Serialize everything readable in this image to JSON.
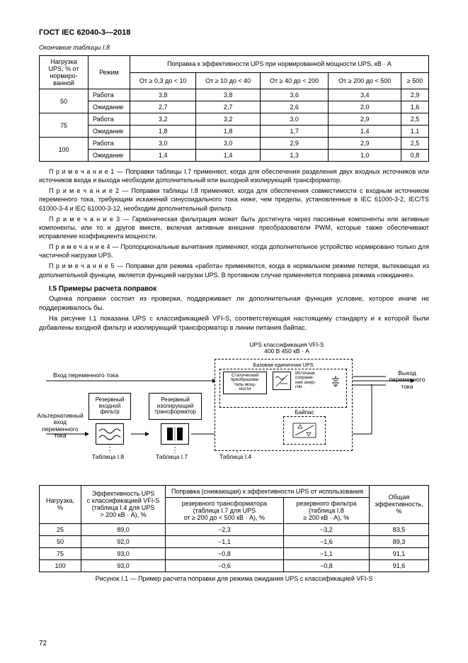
{
  "header": "ГОСТ IEC 62040-3—2018",
  "table_continuation": "Окончание таблицы I.8",
  "table1": {
    "col_headers_top": [
      "Нагрузка UPS, % от нормиро-\nванной",
      "Режим",
      "Поправка к эффективности UPS при нормированной мощности UPS, кВ · А"
    ],
    "range_headers": [
      "От ≥ 0,3 до < 10",
      "От ≥ 10 до < 40",
      "От ≥ 40 до < 200",
      "От ≥ 200 до < 500",
      "≥ 500"
    ],
    "rows": [
      {
        "load": "50",
        "mode": "Работа",
        "v": [
          "3,8",
          "3,8",
          "3,6",
          "3,4",
          "2,9"
        ]
      },
      {
        "load": "",
        "mode": "Ожидание",
        "v": [
          "2,7",
          "2,7",
          "2,6",
          "2,0",
          "1,6"
        ]
      },
      {
        "load": "75",
        "mode": "Работа",
        "v": [
          "3,2",
          "3,2",
          "3,0",
          "2,9",
          "2,5"
        ]
      },
      {
        "load": "",
        "mode": "Ожидание",
        "v": [
          "1,8",
          "1,8",
          "1,7",
          "1,4",
          "1,1"
        ]
      },
      {
        "load": "100",
        "mode": "Работа",
        "v": [
          "3,0",
          "3,0",
          "2,9",
          "2,9",
          "2,5"
        ]
      },
      {
        "load": "",
        "mode": "Ожидание",
        "v": [
          "1,4",
          "1,4",
          "1,3",
          "1,0",
          "0,8"
        ]
      }
    ]
  },
  "notes": {
    "n1": "П р и м е ч а н и е  1 — Поправки таблицы I.7 применяют, когда для обеспечения разделения двух входных источников или источников входа и выхода необходим дополнительный или выходной изолирующий трансформатор.",
    "n2": "П р и м е ч а н и е  2 — Поправки таблицы I.8 применяют, когда для обеспечения совместимости с входным источником переменного тока, требующим искажений синусоидального тока ниже, чем пределы, установленные в IEC 61000-3-2, IEC/TS 61000-3-4 и IEC 61000-3-12, необходим дополнительный фильтр.",
    "n3": "П р и м е ч а н и е  3 — Гармоническая фильтрация может быть достигнута через пассивные компоненты или активные компоненты, или то и другое вместе, включая активные внешние преобразователи PWM, которые также обеспечивают исправление коэффициента мощности.",
    "n4": "П р и м е ч а н и е  4 — Пропорциональные вычитания применяют, когда дополнительное устройство нормировано только для частичной нагрузки UPS.",
    "n5": "П р и м е ч а н и е  5 — Поправки для режима «работа» применяются, когда в нормальном режиме потеря, вытекающая из дополнительной функции, является функцией нагрузки UPS. В противном случае применяется поправка режима «ожидание»."
  },
  "section_i5_title": "I.5 Примеры расчета поправок",
  "section_i5_p1": "Оценка поправки состоит из проверки, поддерживает ли дополнительная функция условие, которое иначе не поддерживалось бы.",
  "section_i5_p2": "На рисунке I.1 показана UPS с классификацией VFI-S, соответствующая настоящему стандарту и к которой были добавлены входной фильтр и изолирующий трансформатор в линии питания байпас.",
  "diagram": {
    "ups_class": "UPS классификация VFI-S\n400 В 450 кВ · А",
    "basic_unit": "Базовая единичная UPS",
    "input_ac": "Вход переменного тока",
    "alt_input": "Альтернативный\nвход\nпеременного\nтока",
    "output_ac": "Выход\nпеременного\nтока",
    "reserve_filter": "Резервный\nвходной\nфильтр",
    "reserve_trans": "Резервный\nизолирующий\nтрансформатор",
    "static_conv": "Статический\nпреобразова-\nтель мощ-\nности",
    "energy_store": "Источник\nсохране-\nния энер-\nгии",
    "bypass": "Байпас",
    "tbl_i8": "Таблица  I.8",
    "tbl_i7": "Таблица  I.7",
    "tbl_i4": "Таблица  I.4"
  },
  "table2": {
    "h_load": "Нагрузка,\n%",
    "h_eff": "Эффективность UPS\nс классификацией VFI-S\n(таблица I.4 для UPS\n> 200 кВ · А), %",
    "h_corr_top": "Поправка (снижающая) к эффективности UPS от использования",
    "h_corr1": "резервного трансформатора\n(таблица I.7 для UPS\nот ≥ 200 до < 500 кВ · А), %",
    "h_corr2": "резервного фильтра\n(таблица I.8\n≥ 200 кВ · А), %",
    "h_total": "Общая\nэффективность,\n%",
    "rows": [
      {
        "load": "25",
        "eff": "89,0",
        "c1": "−2,3",
        "c2": "−3,2",
        "tot": "83,5"
      },
      {
        "load": "50",
        "eff": "92,0",
        "c1": "−1,1",
        "c2": "−1,6",
        "tot": "89,3"
      },
      {
        "load": "75",
        "eff": "93,0",
        "c1": "−0,8",
        "c2": "−1,1",
        "tot": "91,1"
      },
      {
        "load": "100",
        "eff": "93,0",
        "c1": "−0,6",
        "c2": "−0,8",
        "tot": "91,6"
      }
    ]
  },
  "fig_caption": "Рисунок I.1 — Пример расчета поправки для режима ожидания UPS с классификацией VFI-S",
  "page_num": "72"
}
